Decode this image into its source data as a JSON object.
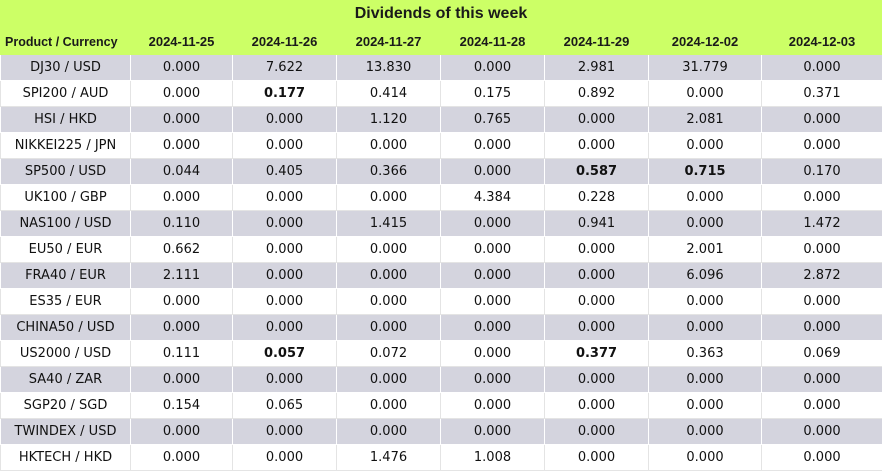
{
  "title": "Dividends of this week",
  "headers": [
    "Product / Currency",
    "2024-11-25",
    "2024-11-26",
    "2024-11-27",
    "2024-11-28",
    "2024-11-29",
    "2024-12-02",
    "2024-12-03"
  ],
  "colors": {
    "header_bg": "#ccff66",
    "row_alt_bg": "#d4d4de",
    "row_bg": "#ffffff"
  },
  "rows": [
    {
      "product": "DJ30 / USD",
      "values": [
        "0.000",
        "7.622",
        "13.830",
        "0.000",
        "2.981",
        "31.779",
        "0.000"
      ],
      "bold": []
    },
    {
      "product": "SPI200 / AUD",
      "values": [
        "0.000",
        "0.177",
        "0.414",
        "0.175",
        "0.892",
        "0.000",
        "0.371"
      ],
      "bold": [
        1
      ]
    },
    {
      "product": "HSI / HKD",
      "values": [
        "0.000",
        "0.000",
        "1.120",
        "0.765",
        "0.000",
        "2.081",
        "0.000"
      ],
      "bold": []
    },
    {
      "product": "NIKKEI225 / JPN",
      "values": [
        "0.000",
        "0.000",
        "0.000",
        "0.000",
        "0.000",
        "0.000",
        "0.000"
      ],
      "bold": []
    },
    {
      "product": "SP500 / USD",
      "values": [
        "0.044",
        "0.405",
        "0.366",
        "0.000",
        "0.587",
        "0.715",
        "0.170"
      ],
      "bold": [
        4,
        5
      ]
    },
    {
      "product": "UK100 / GBP",
      "values": [
        "0.000",
        "0.000",
        "0.000",
        "4.384",
        "0.228",
        "0.000",
        "0.000"
      ],
      "bold": []
    },
    {
      "product": "NAS100 / USD",
      "values": [
        "0.110",
        "0.000",
        "1.415",
        "0.000",
        "0.941",
        "0.000",
        "1.472"
      ],
      "bold": []
    },
    {
      "product": "EU50 / EUR",
      "values": [
        "0.662",
        "0.000",
        "0.000",
        "0.000",
        "0.000",
        "2.001",
        "0.000"
      ],
      "bold": []
    },
    {
      "product": "FRA40 / EUR",
      "values": [
        "2.111",
        "0.000",
        "0.000",
        "0.000",
        "0.000",
        "6.096",
        "2.872"
      ],
      "bold": []
    },
    {
      "product": "ES35 / EUR",
      "values": [
        "0.000",
        "0.000",
        "0.000",
        "0.000",
        "0.000",
        "0.000",
        "0.000"
      ],
      "bold": []
    },
    {
      "product": "CHINA50 / USD",
      "values": [
        "0.000",
        "0.000",
        "0.000",
        "0.000",
        "0.000",
        "0.000",
        "0.000"
      ],
      "bold": []
    },
    {
      "product": "US2000 / USD",
      "values": [
        "0.111",
        "0.057",
        "0.072",
        "0.000",
        "0.377",
        "0.363",
        "0.069"
      ],
      "bold": [
        1,
        4
      ]
    },
    {
      "product": "SA40 / ZAR",
      "values": [
        "0.000",
        "0.000",
        "0.000",
        "0.000",
        "0.000",
        "0.000",
        "0.000"
      ],
      "bold": []
    },
    {
      "product": "SGP20 / SGD",
      "values": [
        "0.154",
        "0.065",
        "0.000",
        "0.000",
        "0.000",
        "0.000",
        "0.000"
      ],
      "bold": []
    },
    {
      "product": "TWINDEX / USD",
      "values": [
        "0.000",
        "0.000",
        "0.000",
        "0.000",
        "0.000",
        "0.000",
        "0.000"
      ],
      "bold": []
    },
    {
      "product": "HKTECH / HKD",
      "values": [
        "0.000",
        "0.000",
        "1.476",
        "1.008",
        "0.000",
        "0.000",
        "0.000"
      ],
      "bold": []
    }
  ]
}
